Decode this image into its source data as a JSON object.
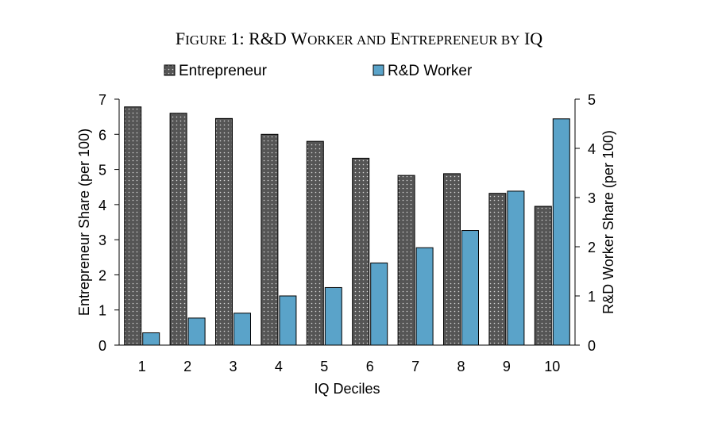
{
  "title": {
    "parts": [
      {
        "text": "F",
        "big": true
      },
      {
        "text": "IGURE",
        "big": false
      },
      {
        "text": " 1: R&D W",
        "big": true
      },
      {
        "text": "ORKER AND",
        "big": false
      },
      {
        "text": " E",
        "big": true
      },
      {
        "text": "NTREPRENEUR BY",
        "big": false
      },
      {
        "text": " IQ",
        "big": true
      }
    ]
  },
  "colors": {
    "entrepreneur_fill": "#555555",
    "rd_fill": "#5aa3c9",
    "axis": "#000000"
  },
  "chart_data": {
    "type": "bar",
    "title": "Figure 1: R&D Worker and Entrepreneur by IQ",
    "xlabel": "IQ Deciles",
    "ylabel_left": "Entrepreneur Share (per 100)",
    "ylabel_right": "R&D Worker Share (per 100)",
    "categories": [
      "1",
      "2",
      "3",
      "4",
      "5",
      "6",
      "7",
      "8",
      "9",
      "10"
    ],
    "series": [
      {
        "name": "Entrepreneur",
        "axis": "left",
        "values": [
          6.78,
          6.6,
          6.45,
          6.0,
          5.8,
          5.32,
          4.83,
          4.88,
          4.32,
          3.95
        ]
      },
      {
        "name": "R&D Worker",
        "axis": "right",
        "values": [
          0.25,
          0.55,
          0.65,
          1.0,
          1.17,
          1.67,
          1.98,
          2.33,
          3.13,
          4.6
        ]
      }
    ],
    "ylim_left": [
      0,
      7
    ],
    "ylim_right": [
      0,
      5
    ],
    "yticks_left": [
      "0",
      "1",
      "2",
      "3",
      "4",
      "5",
      "6",
      "7"
    ],
    "yticks_right": [
      "0",
      "1",
      "2",
      "3",
      "4",
      "5"
    ],
    "legend_placement": "top-center",
    "grid": false
  }
}
